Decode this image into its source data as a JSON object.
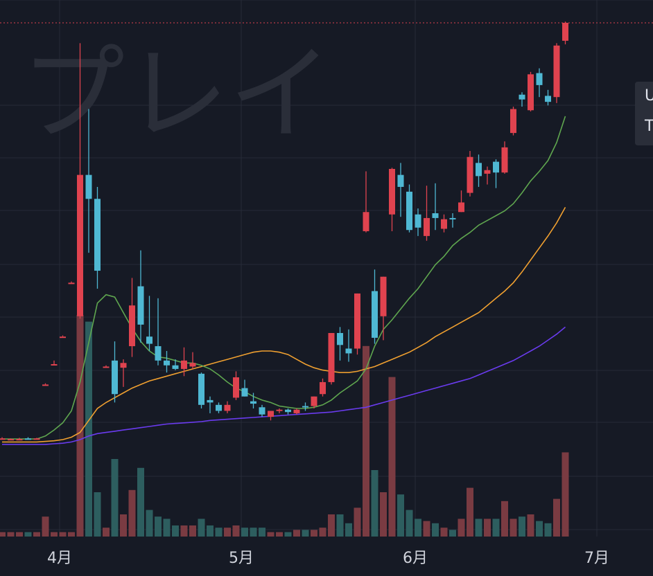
{
  "watermark": "プレイ",
  "tooltip": {
    "line1": "U",
    "line2": "T"
  },
  "colors": {
    "background": "#161a25",
    "grid": "#262b38",
    "up": "#e0434f",
    "down": "#4fb8d3",
    "volume_up": "#7a3b42",
    "volume_down": "#2d5e5f",
    "ma_short": "#5fa64f",
    "ma_mid": "#f0a030",
    "ma_long": "#6a3bef",
    "price_line": "#e0434f"
  },
  "chart_data": {
    "type": "candlestick",
    "x_axis_labels": [
      "4月",
      "5月",
      "6月",
      "7月"
    ],
    "candles": [
      {
        "o": 0.75,
        "h": 0.76,
        "l": 0.74,
        "c": 0.745,
        "v": 1,
        "up": true
      },
      {
        "o": 0.745,
        "h": 0.75,
        "l": 0.735,
        "c": 0.74,
        "v": 1,
        "up": true
      },
      {
        "o": 0.74,
        "h": 0.755,
        "l": 0.735,
        "c": 0.745,
        "v": 1,
        "up": true
      },
      {
        "o": 0.75,
        "h": 0.76,
        "l": 0.745,
        "c": 0.74,
        "v": 1,
        "up": false
      },
      {
        "o": 0.745,
        "h": 0.755,
        "l": 0.74,
        "c": 0.75,
        "v": 1,
        "up": true
      },
      {
        "o": 1.2,
        "h": 1.21,
        "l": 1.2,
        "c": 1.2,
        "v": 1,
        "up": true
      },
      {
        "o": 1.37,
        "h": 1.4,
        "l": 1.37,
        "c": 1.37,
        "v": 1,
        "up": true
      },
      {
        "o": 1.6,
        "h": 1.61,
        "l": 1.6,
        "c": 1.6,
        "v": 1,
        "up": true
      },
      {
        "o": 2.05,
        "h": 2.06,
        "l": 2.05,
        "c": 2.05,
        "v": 1,
        "up": true
      },
      {
        "o": 1.77,
        "h": 4.05,
        "l": 1.75,
        "c": 2.95,
        "v": 1,
        "up": true
      },
      {
        "o": 2.95,
        "h": 3.5,
        "l": 2.3,
        "c": 2.75,
        "v": 1,
        "up": false
      },
      {
        "o": 2.75,
        "h": 2.85,
        "l": 2.0,
        "c": 2.15,
        "v": 1,
        "up": false
      },
      {
        "o": 1.35,
        "h": 1.36,
        "l": 1.34,
        "c": 1.35,
        "v": 1,
        "up": true
      },
      {
        "o": 1.4,
        "h": 1.56,
        "l": 1.05,
        "c": 1.12,
        "v": 1,
        "up": false
      },
      {
        "o": 1.38,
        "h": 1.41,
        "l": 1.18,
        "c": 1.34,
        "v": 1,
        "up": true
      },
      {
        "o": 1.52,
        "h": 2.09,
        "l": 1.43,
        "c": 1.86,
        "v": 1,
        "up": true
      },
      {
        "o": 1.7,
        "h": 2.32,
        "l": 1.55,
        "c": 2.02,
        "v": 1,
        "up": false
      },
      {
        "o": 1.6,
        "h": 1.94,
        "l": 1.48,
        "c": 1.54,
        "v": 1,
        "up": false
      },
      {
        "o": 1.52,
        "h": 1.92,
        "l": 1.36,
        "c": 1.4,
        "v": 1,
        "up": false
      },
      {
        "o": 1.4,
        "h": 1.48,
        "l": 1.3,
        "c": 1.36,
        "v": 1,
        "up": false
      },
      {
        "o": 1.36,
        "h": 1.41,
        "l": 1.32,
        "c": 1.33,
        "v": 1,
        "up": false
      },
      {
        "o": 1.33,
        "h": 1.51,
        "l": 1.27,
        "c": 1.4,
        "v": 1,
        "up": true
      },
      {
        "o": 1.38,
        "h": 1.47,
        "l": 1.33,
        "c": 1.35,
        "v": 1,
        "up": true
      },
      {
        "o": 1.29,
        "h": 1.3,
        "l": 1.0,
        "c": 1.03,
        "v": 1,
        "up": false
      },
      {
        "o": 1.07,
        "h": 1.1,
        "l": 0.96,
        "c": 1.05,
        "v": 1,
        "up": false
      },
      {
        "o": 1.03,
        "h": 1.05,
        "l": 0.96,
        "c": 0.98,
        "v": 1,
        "up": false
      },
      {
        "o": 0.98,
        "h": 1.06,
        "l": 0.96,
        "c": 1.03,
        "v": 1,
        "up": true
      },
      {
        "o": 1.09,
        "h": 1.31,
        "l": 1.07,
        "c": 1.26,
        "v": 1,
        "up": true
      },
      {
        "o": 1.17,
        "h": 1.24,
        "l": 1.1,
        "c": 1.1,
        "v": 1,
        "up": false
      },
      {
        "o": 1.06,
        "h": 1.13,
        "l": 1.0,
        "c": 1.04,
        "v": 1,
        "up": false
      },
      {
        "o": 1.01,
        "h": 1.03,
        "l": 0.93,
        "c": 0.95,
        "v": 1,
        "up": false
      },
      {
        "o": 0.93,
        "h": 0.97,
        "l": 0.9,
        "c": 0.98,
        "v": 1,
        "up": true
      },
      {
        "o": 0.98,
        "h": 1.0,
        "l": 0.96,
        "c": 0.99,
        "v": 1,
        "up": true
      },
      {
        "o": 0.99,
        "h": 1.0,
        "l": 0.95,
        "c": 0.97,
        "v": 1,
        "up": false
      },
      {
        "o": 0.96,
        "h": 1.0,
        "l": 0.95,
        "c": 0.99,
        "v": 1,
        "up": true
      },
      {
        "o": 1.02,
        "h": 1.05,
        "l": 0.98,
        "c": 1.01,
        "v": 1,
        "up": false
      },
      {
        "o": 1.02,
        "h": 1.1,
        "l": 1.0,
        "c": 1.1,
        "v": 1,
        "up": true
      },
      {
        "o": 1.12,
        "h": 1.25,
        "l": 1.1,
        "c": 1.22,
        "v": 1,
        "up": true
      },
      {
        "o": 1.22,
        "h": 1.63,
        "l": 1.2,
        "c": 1.63,
        "v": 1,
        "up": true
      },
      {
        "o": 1.63,
        "h": 1.68,
        "l": 1.4,
        "c": 1.53,
        "v": 1,
        "up": false
      },
      {
        "o": 1.5,
        "h": 1.66,
        "l": 1.39,
        "c": 1.46,
        "v": 1,
        "up": false
      },
      {
        "o": 1.5,
        "h": 1.96,
        "l": 1.45,
        "c": 1.96,
        "v": 1,
        "up": true
      },
      {
        "o": 2.48,
        "h": 2.98,
        "l": 2.47,
        "c": 2.64,
        "v": 1,
        "up": true
      },
      {
        "o": 1.98,
        "h": 2.16,
        "l": 1.54,
        "c": 1.59,
        "v": 1,
        "up": false
      },
      {
        "o": 1.77,
        "h": 2.1,
        "l": 1.57,
        "c": 2.1,
        "v": 1,
        "up": true
      },
      {
        "o": 2.62,
        "h": 3.01,
        "l": 2.48,
        "c": 3.0,
        "v": 1,
        "up": true
      },
      {
        "o": 2.95,
        "h": 3.05,
        "l": 2.6,
        "c": 2.85,
        "v": 1,
        "up": false
      },
      {
        "o": 2.81,
        "h": 2.87,
        "l": 2.47,
        "c": 2.49,
        "v": 1,
        "up": false
      },
      {
        "o": 2.51,
        "h": 2.67,
        "l": 2.44,
        "c": 2.62,
        "v": 1,
        "up": false
      },
      {
        "o": 2.44,
        "h": 2.86,
        "l": 2.4,
        "c": 2.59,
        "v": 1,
        "up": true
      },
      {
        "o": 2.59,
        "h": 2.88,
        "l": 2.49,
        "c": 2.63,
        "v": 1,
        "up": false
      },
      {
        "o": 2.58,
        "h": 2.62,
        "l": 2.47,
        "c": 2.5,
        "v": 1,
        "up": true
      },
      {
        "o": 2.59,
        "h": 2.63,
        "l": 2.51,
        "c": 2.58,
        "v": 1,
        "up": false
      },
      {
        "o": 2.64,
        "h": 2.82,
        "l": 2.64,
        "c": 2.72,
        "v": 1,
        "up": true
      },
      {
        "o": 2.8,
        "h": 3.15,
        "l": 2.77,
        "c": 3.1,
        "v": 1,
        "up": true
      },
      {
        "o": 3.05,
        "h": 3.12,
        "l": 2.85,
        "c": 2.94,
        "v": 1,
        "up": false
      },
      {
        "o": 2.96,
        "h": 3.02,
        "l": 2.87,
        "c": 2.99,
        "v": 1,
        "up": true
      },
      {
        "o": 2.97,
        "h": 3.08,
        "l": 2.84,
        "c": 3.06,
        "v": 1,
        "up": false
      },
      {
        "o": 2.97,
        "h": 3.23,
        "l": 2.96,
        "c": 3.18,
        "v": 1,
        "up": true
      },
      {
        "o": 3.3,
        "h": 3.52,
        "l": 3.28,
        "c": 3.5,
        "v": 1,
        "up": true
      },
      {
        "o": 3.58,
        "h": 3.64,
        "l": 3.52,
        "c": 3.62,
        "v": 1,
        "up": false
      },
      {
        "o": 3.49,
        "h": 3.81,
        "l": 3.48,
        "c": 3.79,
        "v": 1,
        "up": true
      },
      {
        "o": 3.7,
        "h": 3.84,
        "l": 3.6,
        "c": 3.8,
        "v": 1,
        "up": false
      },
      {
        "o": 3.61,
        "h": 3.66,
        "l": 3.53,
        "c": 3.56,
        "v": 1,
        "up": false
      },
      {
        "o": 3.6,
        "h": 4.05,
        "l": 3.55,
        "c": 4.03,
        "v": 1,
        "up": true
      },
      {
        "o": 4.07,
        "h": 4.23,
        "l": 4.04,
        "c": 4.22,
        "v": 1,
        "up": true
      }
    ],
    "ma_short": [
      0.745,
      0.745,
      0.745,
      0.745,
      0.745,
      0.77,
      0.82,
      0.88,
      0.98,
      1.22,
      1.55,
      1.88,
      1.95,
      1.93,
      1.8,
      1.67,
      1.56,
      1.48,
      1.43,
      1.42,
      1.4,
      1.38,
      1.38,
      1.36,
      1.33,
      1.28,
      1.22,
      1.17,
      1.14,
      1.1,
      1.07,
      1.05,
      1.02,
      1.01,
      1.0,
      1.0,
      1.01,
      1.03,
      1.07,
      1.13,
      1.18,
      1.23,
      1.33,
      1.52,
      1.66,
      1.74,
      1.83,
      1.92,
      2.0,
      2.1,
      2.2,
      2.27,
      2.36,
      2.42,
      2.47,
      2.53,
      2.57,
      2.61,
      2.65,
      2.71,
      2.8,
      2.9,
      2.98,
      3.07,
      3.22,
      3.44
    ],
    "ma_mid": [
      0.72,
      0.72,
      0.72,
      0.72,
      0.72,
      0.725,
      0.73,
      0.74,
      0.76,
      0.8,
      0.9,
      1.0,
      1.05,
      1.09,
      1.13,
      1.17,
      1.2,
      1.23,
      1.25,
      1.27,
      1.29,
      1.31,
      1.33,
      1.35,
      1.37,
      1.39,
      1.41,
      1.43,
      1.45,
      1.47,
      1.48,
      1.48,
      1.47,
      1.45,
      1.41,
      1.37,
      1.34,
      1.32,
      1.31,
      1.3,
      1.3,
      1.31,
      1.33,
      1.35,
      1.38,
      1.41,
      1.44,
      1.47,
      1.51,
      1.55,
      1.6,
      1.64,
      1.68,
      1.72,
      1.76,
      1.8,
      1.86,
      1.92,
      1.98,
      2.05,
      2.14,
      2.24,
      2.34,
      2.44,
      2.55,
      2.68
    ],
    "ma_long": [
      0.7,
      0.7,
      0.7,
      0.7,
      0.7,
      0.7,
      0.705,
      0.71,
      0.72,
      0.74,
      0.77,
      0.79,
      0.8,
      0.81,
      0.82,
      0.83,
      0.84,
      0.85,
      0.86,
      0.87,
      0.875,
      0.88,
      0.885,
      0.89,
      0.9,
      0.905,
      0.91,
      0.915,
      0.92,
      0.925,
      0.93,
      0.935,
      0.94,
      0.945,
      0.95,
      0.955,
      0.96,
      0.965,
      0.97,
      0.98,
      0.99,
      1.0,
      1.01,
      1.03,
      1.05,
      1.07,
      1.09,
      1.11,
      1.13,
      1.15,
      1.17,
      1.19,
      1.21,
      1.23,
      1.25,
      1.28,
      1.31,
      1.34,
      1.37,
      1.4,
      1.44,
      1.48,
      1.52,
      1.57,
      1.62,
      1.68
    ],
    "volume": [
      0.02,
      0.02,
      0.02,
      0.02,
      0.02,
      0.09,
      0.02,
      0.02,
      0.02,
      1.0,
      0.97,
      0.2,
      0.04,
      0.35,
      0.1,
      0.21,
      0.31,
      0.12,
      0.09,
      0.08,
      0.05,
      0.05,
      0.05,
      0.08,
      0.05,
      0.04,
      0.04,
      0.05,
      0.04,
      0.04,
      0.04,
      0.02,
      0.02,
      0.02,
      0.03,
      0.03,
      0.03,
      0.04,
      0.1,
      0.1,
      0.06,
      0.13,
      0.86,
      0.3,
      0.2,
      0.72,
      0.19,
      0.12,
      0.08,
      0.07,
      0.06,
      0.04,
      0.03,
      0.08,
      0.22,
      0.08,
      0.08,
      0.08,
      0.16,
      0.08,
      0.09,
      0.1,
      0.07,
      0.06,
      0.17,
      0.38
    ],
    "price_line_value": 4.22
  }
}
